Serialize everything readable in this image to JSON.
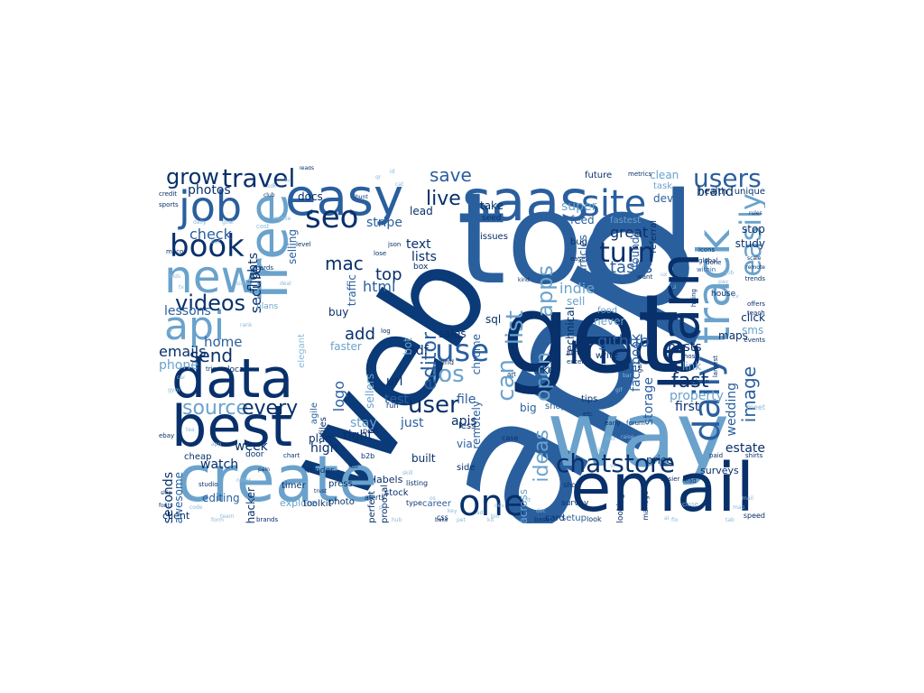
{
  "palette": {
    "navy": "#08306b",
    "dark": "#0b3a78",
    "mid": "#2a5f9e",
    "steel": "#3d6fa8",
    "light": "#6aa2cc",
    "pale": "#8ab8da"
  },
  "words": [
    {
      "text": "app",
      "color": "mid"
    },
    {
      "text": "tool",
      "color": "mid"
    },
    {
      "text": "get",
      "color": "navy"
    },
    {
      "text": "web",
      "color": "dark"
    },
    {
      "text": "create",
      "color": "light"
    },
    {
      "text": "way",
      "color": "light"
    },
    {
      "text": "email",
      "color": "navy"
    },
    {
      "text": "saas",
      "color": "mid"
    },
    {
      "text": "easy",
      "color": "mid"
    },
    {
      "text": "data",
      "color": "navy"
    },
    {
      "text": "best",
      "color": "navy"
    },
    {
      "text": "free",
      "color": "light"
    },
    {
      "text": "new",
      "color": "light"
    },
    {
      "text": "api",
      "color": "light"
    },
    {
      "text": "job",
      "color": "mid"
    },
    {
      "text": "site",
      "color": "mid"
    },
    {
      "text": "learn",
      "color": "navy"
    },
    {
      "text": "track",
      "color": "light"
    },
    {
      "text": "made",
      "color": "navy"
    },
    {
      "text": "one",
      "color": "navy"
    },
    {
      "text": "use",
      "color": "mid"
    },
    {
      "text": "daily",
      "color": "mid"
    },
    {
      "text": "seo",
      "color": "navy"
    },
    {
      "text": "book",
      "color": "navy"
    },
    {
      "text": "travel",
      "color": "navy"
    },
    {
      "text": "grow",
      "color": "navy"
    },
    {
      "text": "users",
      "color": "mid"
    },
    {
      "text": "easily",
      "color": "light"
    },
    {
      "text": "chatstore",
      "color": "navy"
    },
    {
      "text": "videos",
      "color": "navy"
    },
    {
      "text": "source",
      "color": "light"
    },
    {
      "text": "every",
      "color": "navy"
    },
    {
      "text": "user",
      "color": "navy"
    },
    {
      "text": "list",
      "color": "light"
    },
    {
      "text": "ios",
      "color": "light"
    },
    {
      "text": "turn",
      "color": "navy"
    },
    {
      "text": "apps",
      "color": "light"
    },
    {
      "text": "save",
      "color": "mid"
    },
    {
      "text": "live",
      "color": "navy"
    },
    {
      "text": "send",
      "color": "navy"
    },
    {
      "text": "fast",
      "color": "navy"
    },
    {
      "text": "editor",
      "color": "mid"
    },
    {
      "text": "can",
      "color": "light"
    },
    {
      "text": "image",
      "color": "mid"
    },
    {
      "text": "open",
      "color": "light"
    },
    {
      "text": "ideas",
      "color": "light"
    },
    {
      "text": "mac",
      "color": "navy"
    },
    {
      "text": "add",
      "color": "navy"
    },
    {
      "text": "tasks",
      "color": "mid"
    },
    {
      "text": "great",
      "color": "navy"
    },
    {
      "text": "github",
      "color": "mid"
    },
    {
      "text": "top",
      "color": "navy"
    },
    {
      "text": "check",
      "color": "mid"
    },
    {
      "text": "home",
      "color": "mid"
    },
    {
      "text": "lessons",
      "color": "mid"
    },
    {
      "text": "emails",
      "color": "navy"
    },
    {
      "text": "phone",
      "color": "light"
    },
    {
      "text": "week",
      "color": "navy"
    },
    {
      "text": "watch",
      "color": "navy"
    },
    {
      "text": "editing",
      "color": "mid"
    },
    {
      "text": "client",
      "color": "navy"
    },
    {
      "text": "photos",
      "color": "navy"
    },
    {
      "text": "secure",
      "color": "navy"
    },
    {
      "text": "flights",
      "color": "navy"
    },
    {
      "text": "stripe",
      "color": "mid"
    },
    {
      "text": "text",
      "color": "navy"
    },
    {
      "text": "lists",
      "color": "navy"
    },
    {
      "text": "html",
      "color": "mid"
    },
    {
      "text": "pdf",
      "color": "navy"
    },
    {
      "text": "url",
      "color": "navy"
    },
    {
      "text": "test",
      "color": "mid"
    },
    {
      "text": "stay",
      "color": "light"
    },
    {
      "text": "right",
      "color": "navy"
    },
    {
      "text": "high",
      "color": "navy"
    },
    {
      "text": "just",
      "color": "mid"
    },
    {
      "text": "built",
      "color": "navy"
    },
    {
      "text": "file",
      "color": "mid"
    },
    {
      "text": "apis",
      "color": "navy"
    },
    {
      "text": "sales",
      "color": "navy"
    },
    {
      "text": "sql",
      "color": "navy"
    },
    {
      "text": "plan",
      "color": "navy"
    },
    {
      "text": "logo",
      "color": "mid"
    },
    {
      "text": "buy",
      "color": "navy"
    },
    {
      "text": "faster",
      "color": "light"
    },
    {
      "text": "docs",
      "color": "navy"
    },
    {
      "text": "selling",
      "color": "mid"
    },
    {
      "text": "traffic",
      "color": "mid"
    },
    {
      "text": "lead",
      "color": "navy"
    },
    {
      "text": "labels",
      "color": "navy"
    },
    {
      "text": "stock",
      "color": "navy"
    },
    {
      "text": "press",
      "color": "navy"
    },
    {
      "text": "timer",
      "color": "navy"
    },
    {
      "text": "explore",
      "color": "light"
    },
    {
      "text": "photo",
      "color": "navy"
    },
    {
      "text": "career",
      "color": "mid"
    },
    {
      "text": "card",
      "color": "navy"
    },
    {
      "text": "setup",
      "color": "mid"
    },
    {
      "text": "across",
      "color": "light"
    },
    {
      "text": "take",
      "color": "navy"
    },
    {
      "text": "seed",
      "color": "navy"
    },
    {
      "text": "issues",
      "color": "navy"
    },
    {
      "text": "feed",
      "color": "mid"
    },
    {
      "text": "super",
      "color": "light"
    },
    {
      "text": "indie",
      "color": "light"
    },
    {
      "text": "sell",
      "color": "light"
    },
    {
      "text": "articles",
      "color": "mid"
    },
    {
      "text": "founders",
      "color": "mid"
    },
    {
      "text": "clean",
      "color": "light"
    },
    {
      "text": "task",
      "color": "light"
    },
    {
      "text": "devs",
      "color": "mid"
    },
    {
      "text": "future",
      "color": "navy"
    },
    {
      "text": "fastest",
      "color": "light"
    },
    {
      "text": "referral",
      "color": "navy"
    },
    {
      "text": "bug",
      "color": "navy"
    },
    {
      "text": "facebook",
      "color": "mid"
    },
    {
      "text": "food",
      "color": "light"
    },
    {
      "text": "never",
      "color": "light"
    },
    {
      "text": "technical",
      "color": "navy"
    },
    {
      "text": "like",
      "color": "navy"
    },
    {
      "text": "write",
      "color": "navy"
    },
    {
      "text": "fun",
      "color": "mid"
    },
    {
      "text": "tips",
      "color": "navy"
    },
    {
      "text": "shop",
      "color": "mid"
    },
    {
      "text": "big",
      "color": "mid"
    },
    {
      "text": "property",
      "color": "light"
    },
    {
      "text": "first",
      "color": "navy"
    },
    {
      "text": "wedding",
      "color": "mid"
    },
    {
      "text": "storage",
      "color": "mid"
    },
    {
      "text": "price",
      "color": "navy"
    },
    {
      "text": "estate",
      "color": "navy"
    },
    {
      "text": "surveys",
      "color": "navy"
    },
    {
      "text": "posts",
      "color": "navy"
    },
    {
      "text": "link",
      "color": "light"
    },
    {
      "text": "maps",
      "color": "navy"
    },
    {
      "text": "click",
      "color": "navy"
    },
    {
      "text": "sms",
      "color": "light"
    },
    {
      "text": "stop",
      "color": "navy"
    },
    {
      "text": "study",
      "color": "navy"
    },
    {
      "text": "brand",
      "color": "navy"
    },
    {
      "text": "health",
      "color": "navy"
    },
    {
      "text": "unique",
      "color": "navy"
    },
    {
      "text": "house",
      "color": "navy"
    },
    {
      "text": "seconds",
      "color": "navy"
    },
    {
      "text": "awesome",
      "color": "mid"
    },
    {
      "text": "cheap",
      "color": "navy"
    },
    {
      "text": "door",
      "color": "navy"
    },
    {
      "text": "hacker",
      "color": "navy"
    },
    {
      "text": "toolkit",
      "color": "navy"
    },
    {
      "text": "render",
      "color": "navy"
    },
    {
      "text": "perfect",
      "color": "navy"
    },
    {
      "text": "proposal",
      "color": "navy"
    },
    {
      "text": "remotely",
      "color": "mid"
    },
    {
      "text": "chrome",
      "color": "mid"
    },
    {
      "text": "via",
      "color": "mid"
    },
    {
      "text": "less",
      "color": "navy"
    },
    {
      "text": "side",
      "color": "navy"
    },
    {
      "text": "survey",
      "color": "navy"
    },
    {
      "text": "look",
      "color": "navy"
    },
    {
      "text": "show",
      "color": "navy"
    },
    {
      "text": "speed",
      "color": "navy"
    },
    {
      "text": "sellers",
      "color": "light"
    },
    {
      "text": "bot",
      "color": "light"
    },
    {
      "text": "local",
      "color": "navy"
    },
    {
      "text": "trips",
      "color": "navy"
    },
    {
      "text": "alerts",
      "color": "navy"
    },
    {
      "text": "post",
      "color": "navy"
    },
    {
      "text": "b2b",
      "color": "navy"
    },
    {
      "text": "json",
      "color": "navy"
    },
    {
      "text": "box",
      "color": "navy"
    },
    {
      "text": "manage",
      "color": "navy"
    },
    {
      "text": "looking",
      "color": "navy"
    },
    {
      "text": "global",
      "color": "navy"
    },
    {
      "text": "icons",
      "color": "navy"
    },
    {
      "text": "within",
      "color": "mid"
    },
    {
      "text": "metrics",
      "color": "navy"
    },
    {
      "text": "trends",
      "color": "navy"
    },
    {
      "text": "events",
      "color": "navy"
    },
    {
      "text": "offers",
      "color": "navy"
    },
    {
      "text": "teach",
      "color": "navy"
    },
    {
      "text": "credit",
      "color": "navy"
    },
    {
      "text": "sports",
      "color": "navy"
    },
    {
      "text": "macos",
      "color": "navy"
    },
    {
      "text": "cards",
      "color": "navy"
    },
    {
      "text": "level",
      "color": "navy"
    },
    {
      "text": "brands",
      "color": "navy"
    },
    {
      "text": "easier",
      "color": "navy"
    },
    {
      "text": "read",
      "color": "navy"
    },
    {
      "text": "want",
      "color": "navy"
    },
    {
      "text": "done",
      "color": "navy"
    },
    {
      "text": "host",
      "color": "navy"
    },
    {
      "text": "shirts",
      "color": "navy"
    },
    {
      "text": "elegant",
      "color": "pale"
    },
    {
      "text": "agile",
      "color": "mid"
    },
    {
      "text": "files",
      "color": "navy"
    },
    {
      "text": "run",
      "color": "navy"
    },
    {
      "text": "end",
      "color": "navy"
    },
    {
      "text": "lose",
      "color": "navy"
    },
    {
      "text": "log",
      "color": "navy"
    },
    {
      "text": "css",
      "color": "navy"
    },
    {
      "text": "listing",
      "color": "navy"
    },
    {
      "text": "type",
      "color": "navy"
    },
    {
      "text": "bake",
      "color": "navy"
    },
    {
      "text": "close",
      "color": "pale"
    },
    {
      "text": "raise",
      "color": "pale"
    },
    {
      "text": "forum",
      "color": "navy"
    },
    {
      "text": "meet",
      "color": "pale"
    },
    {
      "text": "full",
      "color": "navy"
    },
    {
      "text": "case",
      "color": "navy"
    },
    {
      "text": "base",
      "color": "navy"
    },
    {
      "text": "ebay",
      "color": "navy"
    },
    {
      "text": "excel",
      "color": "navy"
    },
    {
      "text": "film",
      "color": "navy"
    },
    {
      "text": "early",
      "color": "navy"
    },
    {
      "text": "cost",
      "color": "pale"
    },
    {
      "text": "club",
      "color": "navy"
    },
    {
      "text": "kind",
      "color": "navy"
    },
    {
      "text": "ease",
      "color": "navy"
    },
    {
      "text": "etc",
      "color": "navy"
    },
    {
      "text": "art",
      "color": "navy"
    },
    {
      "text": "paid",
      "color": "navy"
    },
    {
      "text": "hiring",
      "color": "navy"
    },
    {
      "text": "admin",
      "color": "navy"
    },
    {
      "text": "largest",
      "color": "navy"
    },
    {
      "text": "gain",
      "color": "navy"
    },
    {
      "text": "fonts",
      "color": "navy"
    },
    {
      "text": "hunt",
      "color": "navy"
    },
    {
      "text": "leads",
      "color": "navy"
    },
    {
      "text": "pain",
      "color": "navy"
    },
    {
      "text": "scale",
      "color": "navy"
    },
    {
      "text": "remote",
      "color": "navy"
    },
    {
      "text": "studio",
      "color": "navy"
    },
    {
      "text": "chart",
      "color": "navy"
    },
    {
      "text": "trust",
      "color": "navy"
    },
    {
      "text": "ship",
      "color": "navy"
    },
    {
      "text": "rules",
      "color": "navy"
    },
    {
      "text": "mobile",
      "color": "pale"
    },
    {
      "text": "daily",
      "color": "pale"
    },
    {
      "text": "goal",
      "color": "pale"
    },
    {
      "text": "bet",
      "color": "pale"
    },
    {
      "text": "notes",
      "color": "pale"
    },
    {
      "text": "plans",
      "color": "light"
    },
    {
      "text": "rank",
      "color": "pale"
    },
    {
      "text": "slack",
      "color": "pale"
    },
    {
      "text": "deal",
      "color": "pale"
    },
    {
      "text": "code",
      "color": "pale"
    },
    {
      "text": "team",
      "color": "pale"
    },
    {
      "text": "form",
      "color": "pale"
    },
    {
      "text": "skill",
      "color": "pale"
    },
    {
      "text": "pro",
      "color": "pale"
    },
    {
      "text": "hub",
      "color": "pale"
    },
    {
      "text": "bio",
      "color": "pale"
    },
    {
      "text": "kit",
      "color": "pale"
    },
    {
      "text": "ai",
      "color": "pale"
    },
    {
      "text": "fix",
      "color": "pale"
    },
    {
      "text": "tab",
      "color": "pale"
    },
    {
      "text": "map",
      "color": "pale"
    },
    {
      "text": "mail",
      "color": "pale"
    },
    {
      "text": "cv",
      "color": "pale"
    },
    {
      "text": "pay",
      "color": "pale"
    },
    {
      "text": "job",
      "color": "pale"
    },
    {
      "text": "ux",
      "color": "pale"
    },
    {
      "text": "ui",
      "color": "pale"
    },
    {
      "text": "bar",
      "color": "pale"
    },
    {
      "text": "gif",
      "color": "pale"
    },
    {
      "text": "net",
      "color": "pale"
    },
    {
      "text": "tax",
      "color": "pale"
    },
    {
      "text": "vr",
      "color": "pale"
    },
    {
      "text": "doc",
      "color": "pale"
    },
    {
      "text": "fit",
      "color": "pale"
    },
    {
      "text": "dev",
      "color": "pale"
    },
    {
      "text": "ad",
      "color": "pale"
    },
    {
      "text": "pet",
      "color": "pale"
    },
    {
      "text": "key",
      "color": "pale"
    },
    {
      "text": "os",
      "color": "pale"
    },
    {
      "text": "id",
      "color": "pale"
    },
    {
      "text": "qr",
      "color": "pale"
    },
    {
      "text": "cat",
      "color": "pale"
    },
    {
      "text": "hr",
      "color": "pale"
    },
    {
      "text": "sdk",
      "color": "pale"
    },
    {
      "text": "kids",
      "color": "pale"
    },
    {
      "text": "tv",
      "color": "pale"
    },
    {
      "text": "js",
      "color": "pale"
    },
    {
      "text": "car",
      "color": "pale"
    },
    {
      "text": "gym",
      "color": "pale"
    },
    {
      "text": "tea",
      "color": "pale"
    },
    {
      "text": "app",
      "color": "pale"
    }
  ]
}
